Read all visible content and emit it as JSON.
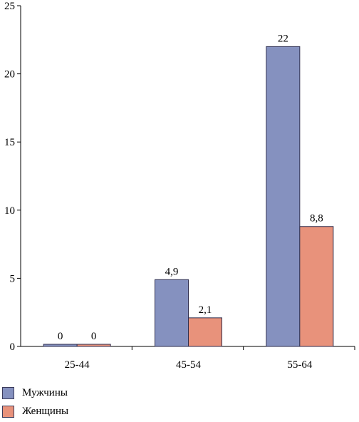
{
  "chart_data": {
    "type": "bar",
    "categories": [
      "25-44",
      "45-54",
      "55-64"
    ],
    "series": [
      {
        "name": "Мужчины",
        "values": [
          0,
          4.9,
          22
        ],
        "labels": [
          "0",
          "4,9",
          "22"
        ],
        "color": "#8591bf"
      },
      {
        "name": "Женщины",
        "values": [
          0,
          2.1,
          8.8
        ],
        "labels": [
          "0",
          "2,1",
          "8,8"
        ],
        "color": "#e8927b"
      }
    ],
    "ylim": [
      0,
      25
    ],
    "yticks": [
      "0",
      "5",
      "10",
      "15",
      "20",
      "25"
    ],
    "grid": false,
    "legend_position": "bottom-left"
  }
}
